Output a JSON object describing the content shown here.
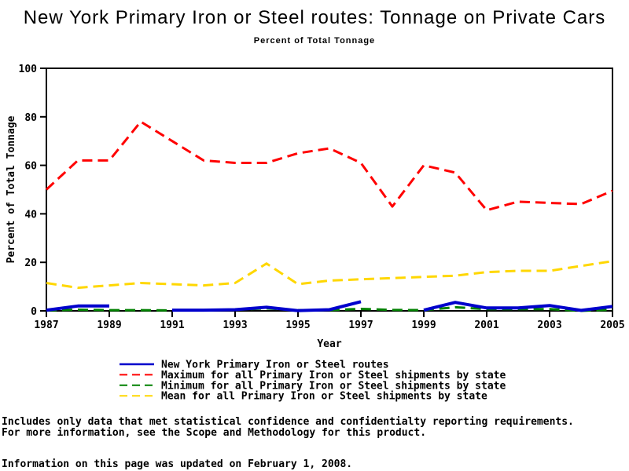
{
  "page": {
    "title": "New York Primary Iron or Steel routes: Tonnage on Private Cars",
    "subtitle": "Percent of Total Tonnage",
    "footnote_line1": "Includes only data that met statistical confidence and confidentialty reporting requirements.",
    "footnote_line2": "For more information, see the Scope and Methodology for this product.",
    "updated_note": "Information on this page was updated on February 1, 2008."
  },
  "chart_data": {
    "type": "line",
    "title": "New York Primary Iron or Steel routes: Tonnage on Private Cars",
    "subtitle": "Percent of Total Tonnage",
    "xlabel": "Year",
    "ylabel": "Percent of Total Tonnage",
    "ylim": [
      0,
      100
    ],
    "yticks": [
      0,
      20,
      40,
      60,
      80,
      100
    ],
    "xticks": [
      1987,
      1989,
      1991,
      1993,
      1995,
      1997,
      1999,
      2001,
      2003,
      2005
    ],
    "x": [
      1987,
      1988,
      1989,
      1990,
      1991,
      1992,
      1993,
      1994,
      1995,
      1996,
      1997,
      1998,
      1999,
      2000,
      2001,
      2002,
      2003,
      2004,
      2005
    ],
    "grid": false,
    "legend_position": "bottom",
    "background": "#ffffff",
    "series": [
      {
        "name": "New York Primary Iron or Steel routes",
        "slug": "new-york-routes",
        "color": "#0000CC",
        "style": "solid",
        "width": 4,
        "values": [
          0.3,
          2,
          2,
          null,
          0.3,
          0.3,
          0.5,
          1.5,
          0.1,
          0.5,
          3.8,
          null,
          0.3,
          3.5,
          1.2,
          1.2,
          2.2,
          0.2,
          1.8
        ]
      },
      {
        "name": "Maximum for all Primary Iron or Steel shipments by state",
        "slug": "maximum-by-state",
        "color": "#FF0000",
        "style": "dashed",
        "width": 3,
        "values": [
          50,
          62,
          62,
          78,
          70,
          62,
          61,
          61,
          65,
          67,
          61,
          43,
          60,
          57,
          41.5,
          45,
          44.5,
          44,
          49.5
        ]
      },
      {
        "name": "Minimum for all Primary Iron or Steel shipments by state",
        "slug": "minimum-by-state",
        "color": "#008000",
        "style": "dashed",
        "width": 3,
        "values": [
          0.2,
          0.5,
          0.3,
          0.3,
          0.2,
          0.2,
          0.5,
          1,
          0.3,
          0.3,
          0.8,
          0.4,
          0.3,
          1.5,
          0.7,
          0.7,
          0.7,
          0,
          0.5
        ]
      },
      {
        "name": "Mean for all Primary Iron or Steel shipments by state",
        "slug": "mean-by-state",
        "color": "#FFD700",
        "style": "dashed",
        "width": 3,
        "values": [
          11.5,
          9.5,
          10.5,
          11.5,
          11,
          10.5,
          11.5,
          19.5,
          11,
          12.5,
          13,
          13.5,
          14,
          14.5,
          16,
          16.5,
          16.5,
          18.5,
          20.5
        ]
      }
    ]
  }
}
